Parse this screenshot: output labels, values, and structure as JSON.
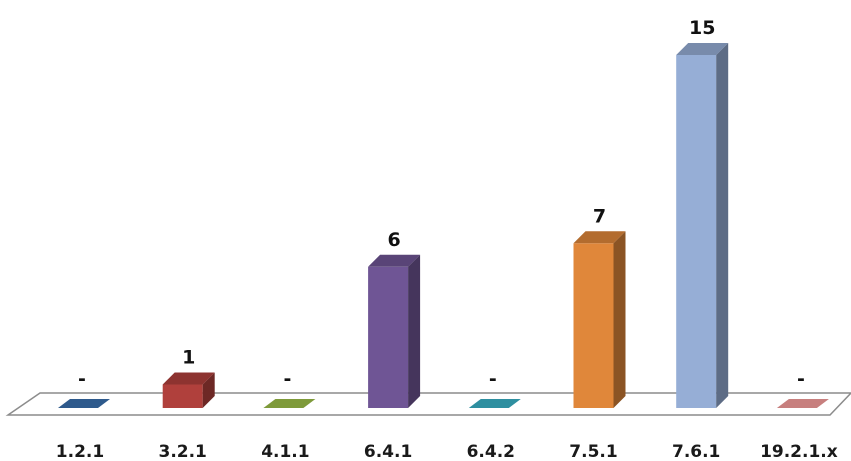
{
  "chart_data": {
    "type": "bar",
    "categories": [
      "1.2.1",
      "3.2.1",
      "4.1.1",
      "6.4.1",
      "6.4.2",
      "7.5.1",
      "7.6.1",
      "19.2.1.x"
    ],
    "values": [
      0,
      1,
      0,
      6,
      0,
      7,
      15,
      0
    ],
    "value_labels": [
      "-",
      "1",
      "-",
      "6",
      "-",
      "7",
      "15",
      "-"
    ],
    "colors": [
      "#2E5A8C",
      "#B0403C",
      "#7E9A3A",
      "#6F5595",
      "#2E8FA0",
      "#E0873A",
      "#96AED6",
      "#C77F7E"
    ],
    "title": "",
    "xlabel": "",
    "ylabel": "",
    "ylim": [
      0,
      15
    ],
    "grid": false,
    "legend": "none",
    "style": "3d-column"
  }
}
